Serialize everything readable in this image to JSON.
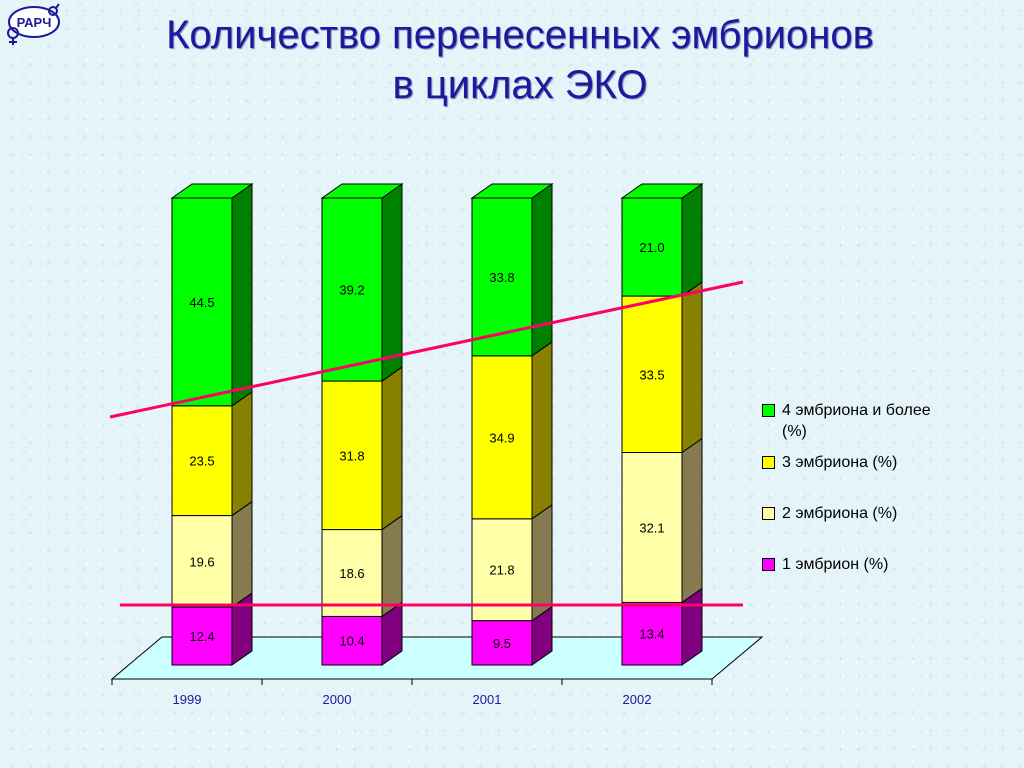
{
  "logo_text": "РАРЧ",
  "chart_data": {
    "type": "bar",
    "stacked": true,
    "three_d": true,
    "title": "Количество перенесенных эмбрионов в циклах ЭКО",
    "title_lines": [
      "Количество перенесенных эмбрионов",
      "в циклах ЭКО"
    ],
    "categories": [
      "1999",
      "2000",
      "2001",
      "2002"
    ],
    "series": [
      {
        "name": "1 эмбрион (%)",
        "values": [
          12.4,
          10.4,
          9.5,
          13.4
        ],
        "color": "#ff00ff",
        "side": "#80007f",
        "labels": [
          "12.4",
          "10.4",
          "9.5",
          "13.4"
        ]
      },
      {
        "name": "2 эмбриона (%)",
        "values": [
          19.6,
          18.6,
          21.8,
          32.1
        ],
        "color": "#ffffa8",
        "side": "#857a50",
        "labels": [
          "19.6",
          "18.6",
          "21.8",
          "32.1"
        ]
      },
      {
        "name": "3 эмбриона (%)",
        "values": [
          23.5,
          31.8,
          34.9,
          33.5
        ],
        "color": "#ffff00",
        "side": "#878000",
        "labels": [
          "23.5",
          "31.8",
          "34.9",
          "33.5"
        ]
      },
      {
        "name": "4 эмбриона и более (%)",
        "values": [
          44.5,
          39.2,
          33.8,
          21.0
        ],
        "color": "#00ff00",
        "side": "#008000",
        "labels": [
          "44.5",
          "39.2",
          "33.8",
          "21.0"
        ]
      }
    ],
    "legend_order": [
      3,
      2,
      1,
      0
    ],
    "legend_position": "right",
    "trend_lines": true,
    "trend_color": "#ff0066",
    "floor_color": "#ccffff",
    "category_label_color": "#1a1a9c",
    "ylim": [
      0,
      100
    ]
  }
}
